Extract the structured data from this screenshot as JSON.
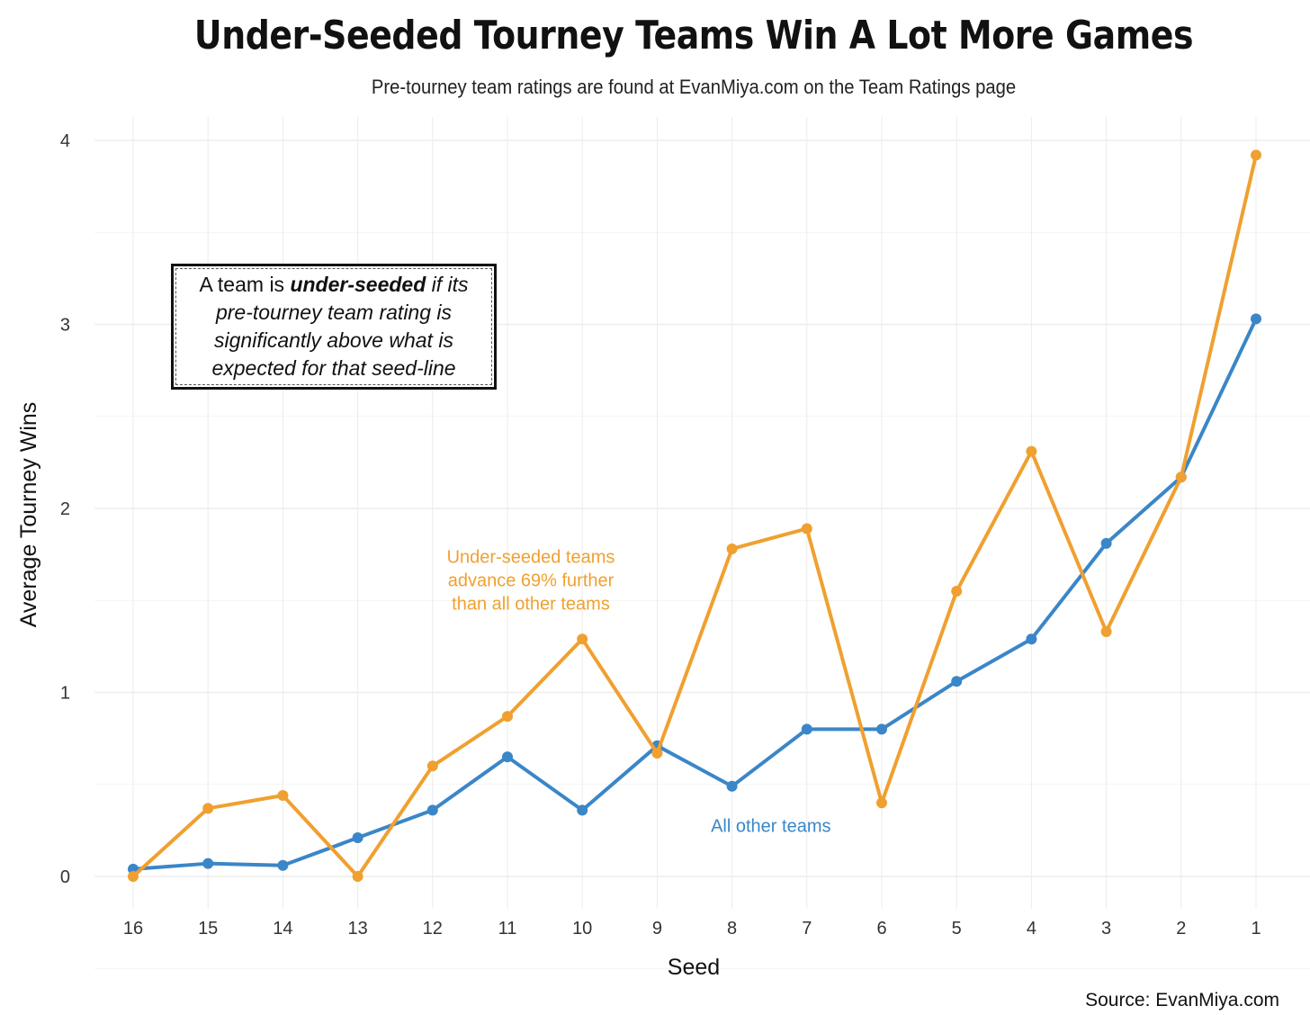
{
  "title": "Under-Seeded Tourney Teams Win A Lot More Games",
  "subtitle": "Pre-tourney team ratings are found at EvanMiya.com on the Team Ratings page",
  "source": "Source: EvanMiya.com",
  "note": {
    "lead": "A team is ",
    "emphasis": "under-seeded",
    "rest": " if its pre-tourney team rating is significantly above what is expected for that seed-line"
  },
  "colors": {
    "under_seeded": "#F0A030",
    "all_other": "#3A86C8",
    "grid": "#EBEBEB"
  },
  "chart_data": {
    "type": "line",
    "title": "Under-Seeded Tourney Teams Win A Lot More Games",
    "xlabel": "Seed",
    "ylabel": "Average Tourney Wins",
    "categories": [
      "16",
      "15",
      "14",
      "13",
      "12",
      "11",
      "10",
      "9",
      "8",
      "7",
      "6",
      "5",
      "4",
      "3",
      "2",
      "1"
    ],
    "ylim": [
      0,
      4
    ],
    "yticks": [
      "0",
      "1",
      "2",
      "3",
      "4"
    ],
    "grid": true,
    "series": [
      {
        "key": "under_seeded",
        "values": [
          0.0,
          0.37,
          0.44,
          0.0,
          0.6,
          0.87,
          1.29,
          0.67,
          1.78,
          1.89,
          0.4,
          1.55,
          2.31,
          1.33,
          2.17,
          3.92
        ]
      },
      {
        "key": "all_other",
        "values": [
          0.04,
          0.07,
          0.06,
          0.21,
          0.36,
          0.65,
          0.36,
          0.71,
          0.49,
          0.8,
          0.8,
          1.06,
          1.29,
          1.81,
          2.17,
          3.03
        ]
      }
    ],
    "annotations": [
      {
        "series": "under_seeded",
        "lines": [
          "Under-seeded teams",
          "advance 69% further",
          "than all other teams"
        ],
        "anchor_category": "11",
        "anchor_value": 1.45
      },
      {
        "series": "all_other",
        "lines": [
          "All other teams"
        ],
        "anchor_category": "7",
        "anchor_value": 0.28
      }
    ]
  }
}
